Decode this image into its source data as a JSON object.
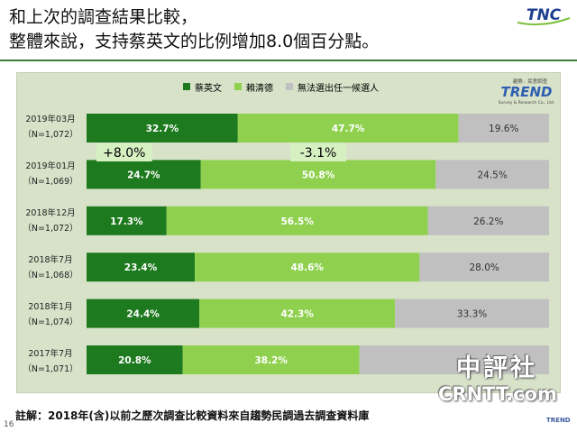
{
  "slide": {
    "title_line1": "和上次的調查結果比較，",
    "title_line2": "整體來說，支持蔡英文的比例增加8.0個百分點。",
    "logo_text": "TNC",
    "brand_sub": "趨勢．民意調查",
    "brand_name": "TREND",
    "brand_tag": "Survey & Research Co., Ltd.",
    "note": "註解：2018年(含)以前之歷次調查比較資料來自趨勢民調過去調查資料庫",
    "page_number": "16",
    "watermark_line1": "中評社",
    "watermark_line2": "CRNTT.com",
    "corner_mark": "TREND"
  },
  "chart_data": {
    "type": "bar",
    "stacked": true,
    "orientation": "horizontal",
    "percent_stacked": true,
    "legend_position": "top",
    "categories": [
      {
        "line1": "2019年03月",
        "line2": "（N=1,072）"
      },
      {
        "line1": "2019年01月",
        "line2": "（N=1,069）"
      },
      {
        "line1": "2018年12月",
        "line2": "（N=1,072）"
      },
      {
        "line1": "2018年7月",
        "line2": "（N=1,068）"
      },
      {
        "line1": "2018年1月",
        "line2": "（N=1,074）"
      },
      {
        "line1": "2017年7月",
        "line2": "（N=1,071）"
      }
    ],
    "series": [
      {
        "name": "蔡英文",
        "color": "#1e7a1e",
        "values": [
          32.7,
          24.7,
          17.3,
          23.4,
          24.4,
          20.8
        ],
        "labels": [
          "32.7%",
          "24.7%",
          "17.3%",
          "23.4%",
          "24.4%",
          "20.8%"
        ]
      },
      {
        "name": "賴清德",
        "color": "#8fd14f",
        "values": [
          47.7,
          50.8,
          56.5,
          48.6,
          42.3,
          38.2
        ],
        "labels": [
          "47.7%",
          "50.8%",
          "56.5%",
          "48.6%",
          "42.3%",
          "38.2%"
        ]
      },
      {
        "name": "無法選出任一候選人",
        "color": "#c0c0c0",
        "values": [
          19.6,
          24.5,
          26.2,
          28.0,
          33.3,
          41.0
        ],
        "labels": [
          "19.6%",
          "24.5%",
          "26.2%",
          "28.0%",
          "33.3%",
          ""
        ]
      }
    ],
    "annotations": [
      {
        "text": "+8.0%",
        "series": 0
      },
      {
        "text": "-3.1%",
        "series": 1
      }
    ]
  }
}
